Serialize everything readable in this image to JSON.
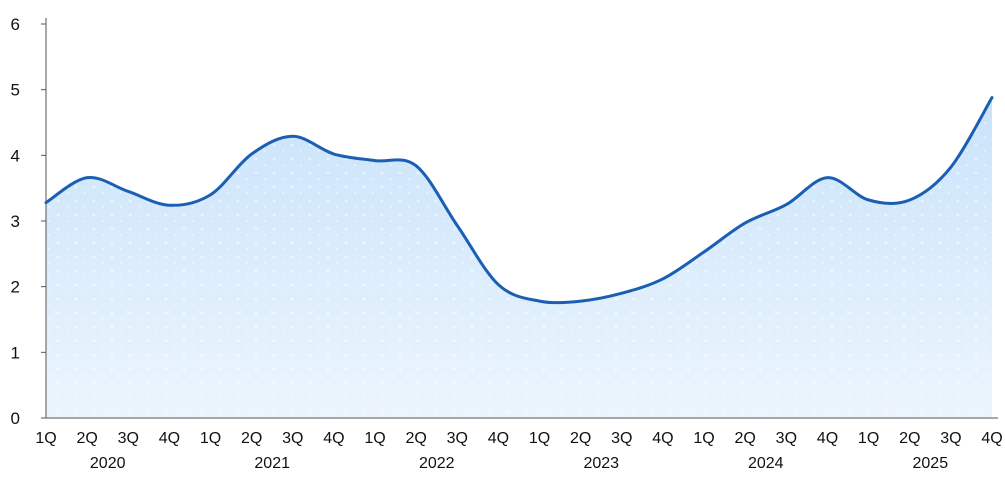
{
  "chart_data": {
    "type": "area",
    "title": "",
    "xlabel": "",
    "ylabel": "",
    "ylim": [
      0,
      6
    ],
    "y_ticks": [
      0,
      1,
      2,
      3,
      4,
      5,
      6
    ],
    "grid": false,
    "legend": "none",
    "categories": [
      "1Q",
      "2Q",
      "3Q",
      "4Q",
      "1Q",
      "2Q",
      "3Q",
      "4Q",
      "1Q",
      "2Q",
      "3Q",
      "4Q",
      "1Q",
      "2Q",
      "3Q",
      "4Q",
      "1Q",
      "2Q",
      "3Q",
      "4Q",
      "1Q",
      "2Q",
      "3Q",
      "4Q"
    ],
    "year_groups": [
      {
        "label": "2020",
        "quarters": 4
      },
      {
        "label": "2021",
        "quarters": 4
      },
      {
        "label": "2022",
        "quarters": 4
      },
      {
        "label": "2023",
        "quarters": 4
      },
      {
        "label": "2024",
        "quarters": 4
      },
      {
        "label": "2025",
        "quarters": 4
      }
    ],
    "series": [
      {
        "values": [
          3.28,
          3.66,
          3.45,
          3.24,
          3.4,
          4.02,
          4.29,
          4.02,
          3.92,
          3.84,
          2.93,
          2.03,
          1.78,
          1.78,
          1.9,
          2.12,
          2.53,
          2.97,
          3.25,
          3.66,
          3.32,
          3.32,
          3.82,
          4.88
        ],
        "line_color": "#1a5fb4",
        "fill_color": "#cfe6fb"
      }
    ]
  }
}
